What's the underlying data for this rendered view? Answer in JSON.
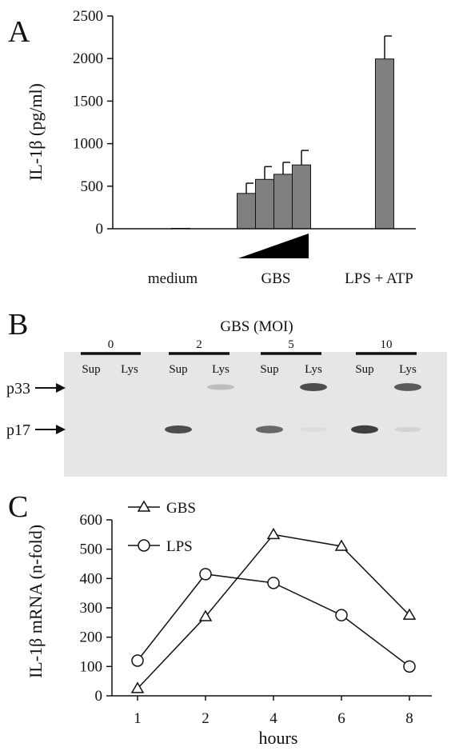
{
  "panels": {
    "a": {
      "letter": "A"
    },
    "b": {
      "letter": "B",
      "title": "GBS (MOI)",
      "band_labels": [
        "p33",
        "p17"
      ],
      "lanes": [
        {
          "moi": "0",
          "sup": "Sup",
          "lys": "Lys"
        },
        {
          "moi": "2",
          "sup": "Sup",
          "lys": "Lys"
        },
        {
          "moi": "5",
          "sup": "Sup",
          "lys": "Lys"
        },
        {
          "moi": "10",
          "sup": "Sup",
          "lys": "Lys"
        }
      ],
      "bands": {
        "p33": [
          0,
          0,
          0,
          0.35,
          0,
          0.85,
          0,
          0.8
        ],
        "p17": [
          0,
          0,
          0.85,
          0,
          0.75,
          0.12,
          0.9,
          0.2
        ]
      }
    },
    "c": {
      "letter": "C"
    }
  },
  "chart_data": [
    {
      "type": "bar",
      "ylabel": "IL-1β (pg/ml)",
      "ylim": [
        0,
        2500
      ],
      "yticks": [
        0,
        500,
        1000,
        1500,
        2000,
        2500
      ],
      "categories": [
        "medium",
        "GBS",
        "GBS",
        "GBS",
        "GBS",
        "LPS + ATP"
      ],
      "values": [
        5,
        415,
        580,
        640,
        750,
        1995
      ],
      "errors": [
        0,
        120,
        150,
        140,
        170,
        270
      ],
      "group_labels": [
        "medium",
        "GBS",
        "LPS + ATP"
      ],
      "gbs_dose": "increasing",
      "bar_color": "#808080"
    },
    {
      "type": "line",
      "xlabel": "hours",
      "ylabel": "IL-1β mRNA (n-fold)",
      "x": [
        1,
        2,
        4,
        6,
        8
      ],
      "ylim": [
        0,
        600
      ],
      "yticks": [
        0,
        100,
        200,
        300,
        400,
        500,
        600
      ],
      "series": [
        {
          "name": "GBS",
          "marker": "triangle",
          "values": [
            25,
            270,
            550,
            510,
            275
          ]
        },
        {
          "name": "LPS",
          "marker": "circle",
          "values": [
            120,
            415,
            385,
            275,
            100
          ]
        }
      ],
      "legend": "top-left"
    }
  ]
}
